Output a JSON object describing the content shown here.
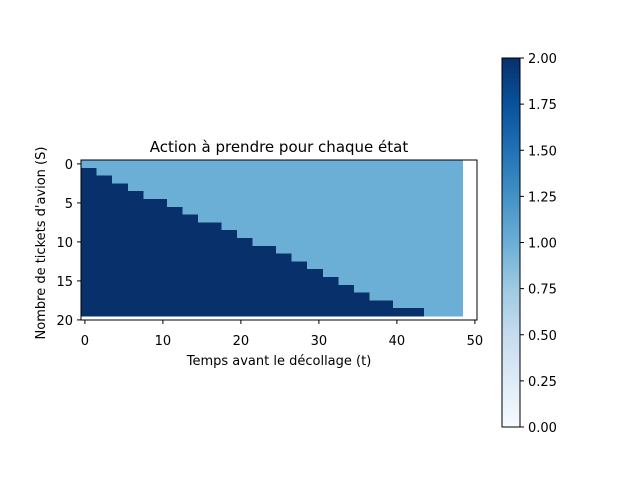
{
  "chart_data": {
    "type": "heatmap",
    "title": "Action à prendre pour chaque état",
    "xlabel": "Temps avant le décollage (t)",
    "ylabel": "Nombre de tickets d'avion (S)",
    "x_range": [
      0,
      50
    ],
    "y_range": [
      0,
      20
    ],
    "x_ticks": [
      0,
      10,
      20,
      30,
      40,
      50
    ],
    "y_ticks": [
      0,
      5,
      10,
      15,
      20
    ],
    "rows": 20,
    "cols": 50,
    "row_min_t_for_action_1": [
      0,
      2,
      4,
      6,
      8,
      11,
      13,
      15,
      18,
      20,
      22,
      25,
      27,
      29,
      31,
      33,
      35,
      37,
      40,
      44
    ],
    "values_by_region": {
      "below_boundary": 2,
      "above_boundary": 1
    },
    "colorbar": {
      "min": 0.0,
      "max": 2.0,
      "ticks": [
        "0.00",
        "0.25",
        "0.50",
        "0.75",
        "1.00",
        "1.25",
        "1.50",
        "1.75",
        "2.00"
      ],
      "colormap": "Blues"
    },
    "colors": {
      "value_2": "#08306b",
      "value_1": "#6baed6"
    }
  }
}
